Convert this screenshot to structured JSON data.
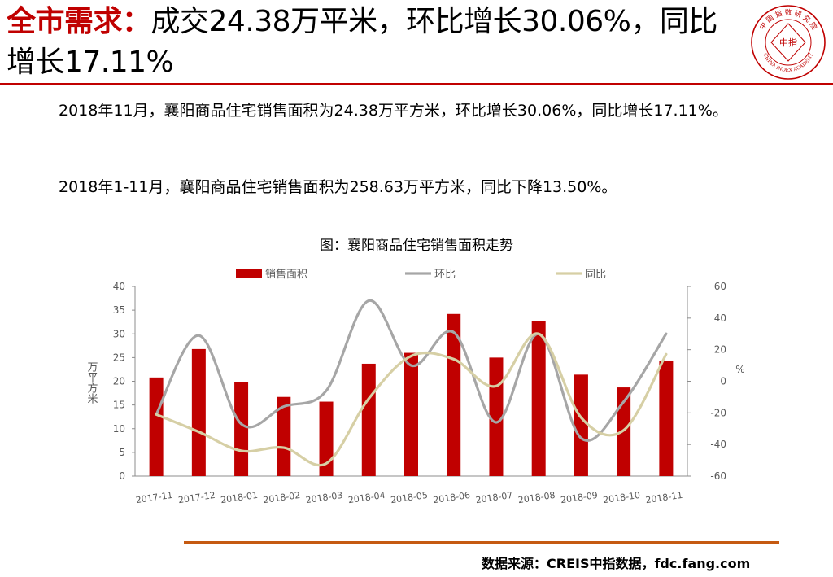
{
  "slide": {
    "title_accent": "全市需求：",
    "title_rest": "成交24.38万平米，环比增长30.06%，同比增长17.11%",
    "logo": {
      "top_text": "中 国 指 数 研 究 院",
      "center_text": "中指",
      "bottom_text": "CHINA INDEX ACADEMY"
    },
    "paragraphs": [
      "2018年11月，襄阳商品住宅销售面积为24.38万平方米，环比增长30.06%，同比增长17.11%。",
      "2018年1-11月，襄阳商品住宅销售面积为258.63万平方米，同比下降13.50%。"
    ],
    "chart_title": "图：襄阳商品住宅销售面积走势",
    "source": "数据来源：CREIS中指数据，fdc.fang.com"
  },
  "colors": {
    "accent": "#c00000",
    "bar": "#c00000",
    "mom_line": "#a6a6a6",
    "yoy_line": "#d6cfa5",
    "footer_rule": "#c55a11"
  },
  "chart_data": {
    "type": "bar",
    "categories": [
      "2017-11",
      "2017-12",
      "2018-01",
      "2018-02",
      "2018-03",
      "2018-04",
      "2018-05",
      "2018-06",
      "2018-07",
      "2018-08",
      "2018-09",
      "2018-10",
      "2018-11"
    ],
    "series": [
      {
        "name": "销售面积",
        "type": "bar",
        "axis": "left",
        "values": [
          20.8,
          26.8,
          19.9,
          16.7,
          15.7,
          23.7,
          26.0,
          34.2,
          25.0,
          32.7,
          21.4,
          18.7,
          24.38
        ]
      },
      {
        "name": "环比",
        "type": "line",
        "axis": "right",
        "values": [
          -21,
          29,
          -27,
          -16,
          -6,
          51,
          10,
          31,
          -26,
          30,
          -36,
          -13,
          30.06
        ]
      },
      {
        "name": "同比",
        "type": "line",
        "axis": "right",
        "values": [
          -21,
          -32,
          -44,
          -42,
          -52,
          -11,
          16,
          14,
          -3,
          30,
          -23,
          -31,
          17.11
        ]
      }
    ],
    "ylabel_left": "万平方米",
    "ylabel_right": "%",
    "ylim_left": [
      0,
      40
    ],
    "ylim_right": [
      -60,
      60
    ],
    "yticks_left": [
      "0",
      "5",
      "10",
      "15",
      "20",
      "25",
      "30",
      "35",
      "40"
    ],
    "yticks_right": [
      "-60",
      "-40",
      "-20",
      "0",
      "20",
      "40",
      "60"
    ],
    "legend_position": "top",
    "grid": false
  }
}
